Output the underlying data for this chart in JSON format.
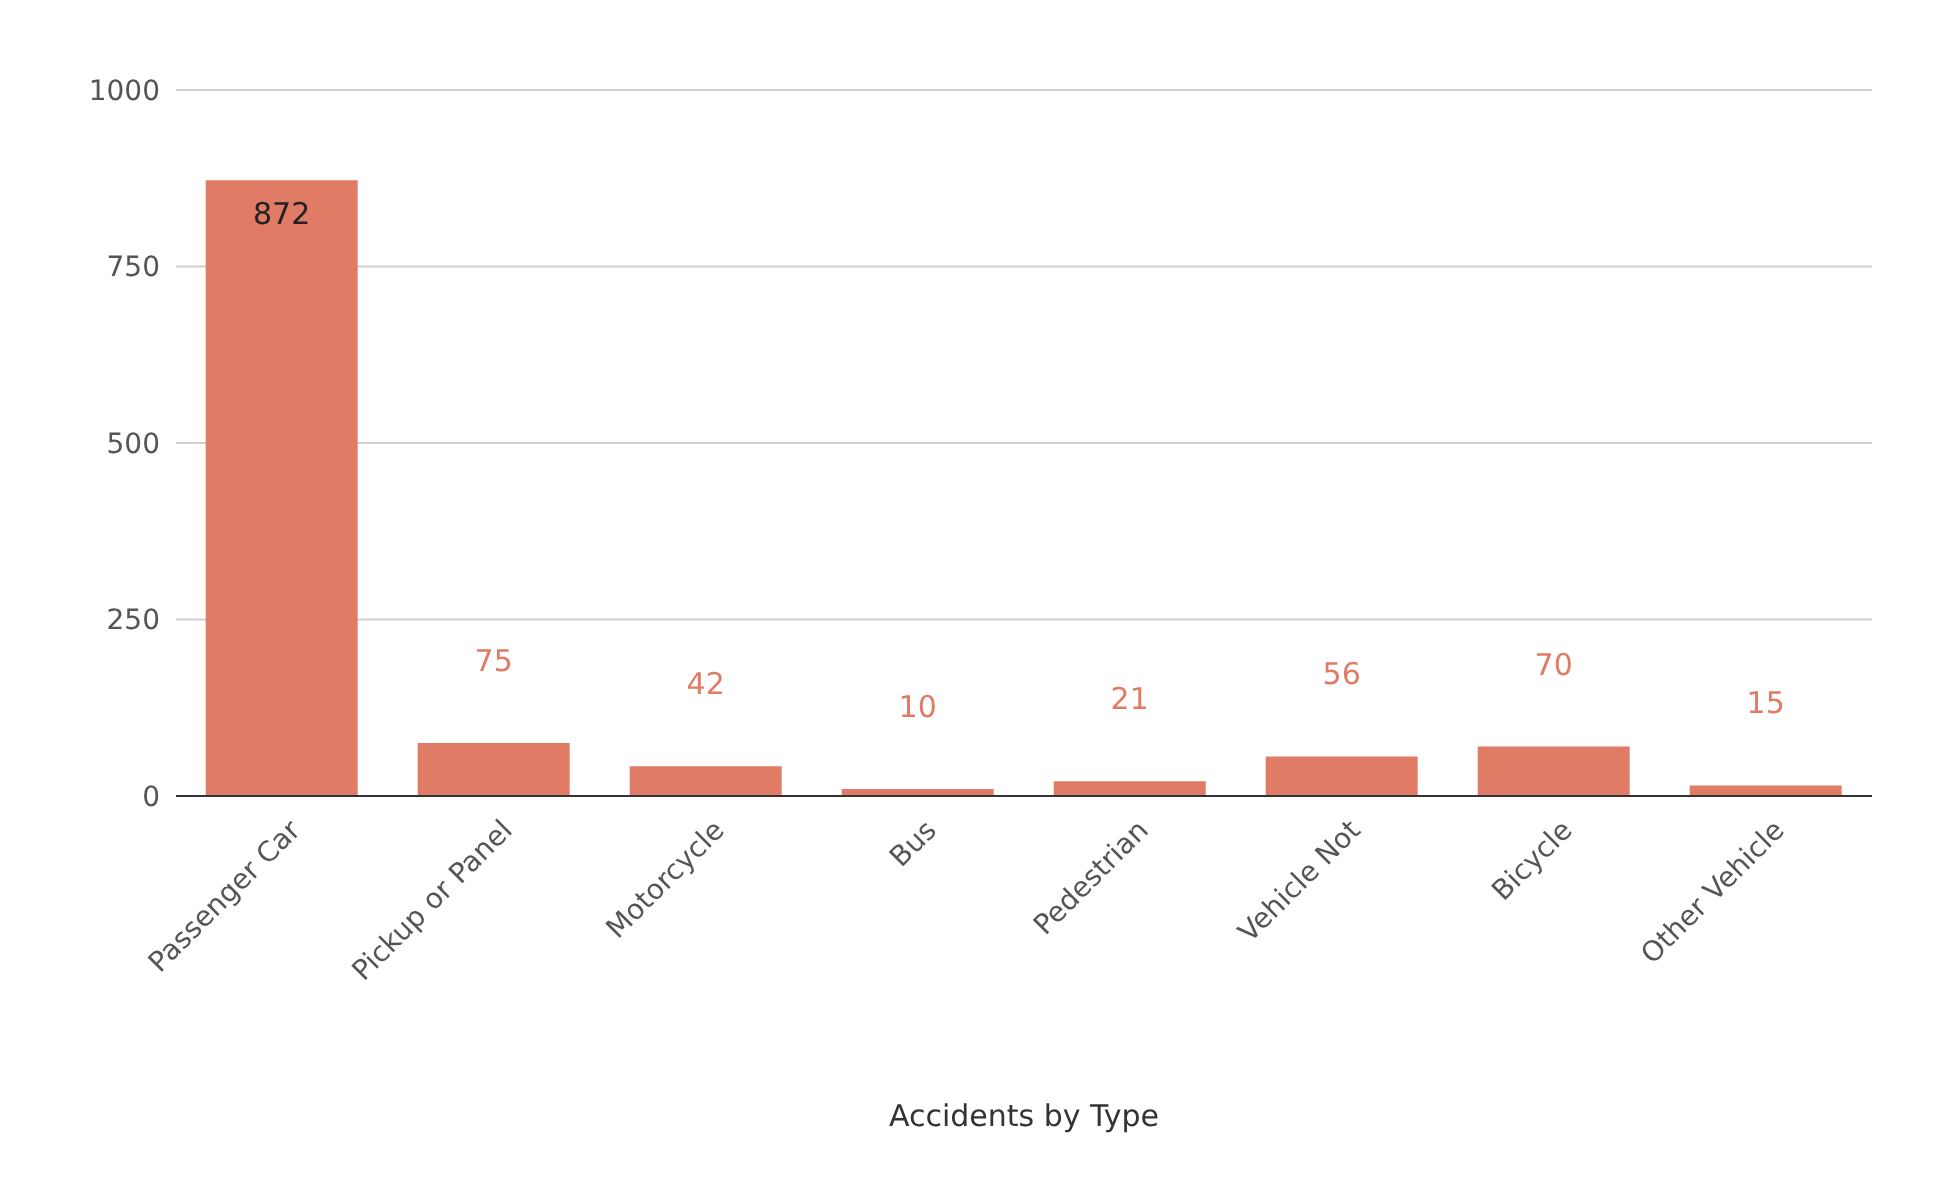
{
  "chart_data": {
    "type": "bar",
    "xlabel": "Accidents by Type",
    "categories": [
      "Passenger Car",
      "Pickup or Panel",
      "Motorcycle",
      "Bus",
      "Pedestrian",
      "Vehicle Not",
      "Bicycle",
      "Other Vehicle"
    ],
    "values": [
      872,
      75,
      42,
      10,
      21,
      56,
      70,
      15
    ],
    "color": "#e07b65",
    "ylim": [
      0,
      1000
    ],
    "yticks": [
      0,
      250,
      500,
      750,
      1000
    ],
    "grid": "y",
    "data_labels": true
  }
}
